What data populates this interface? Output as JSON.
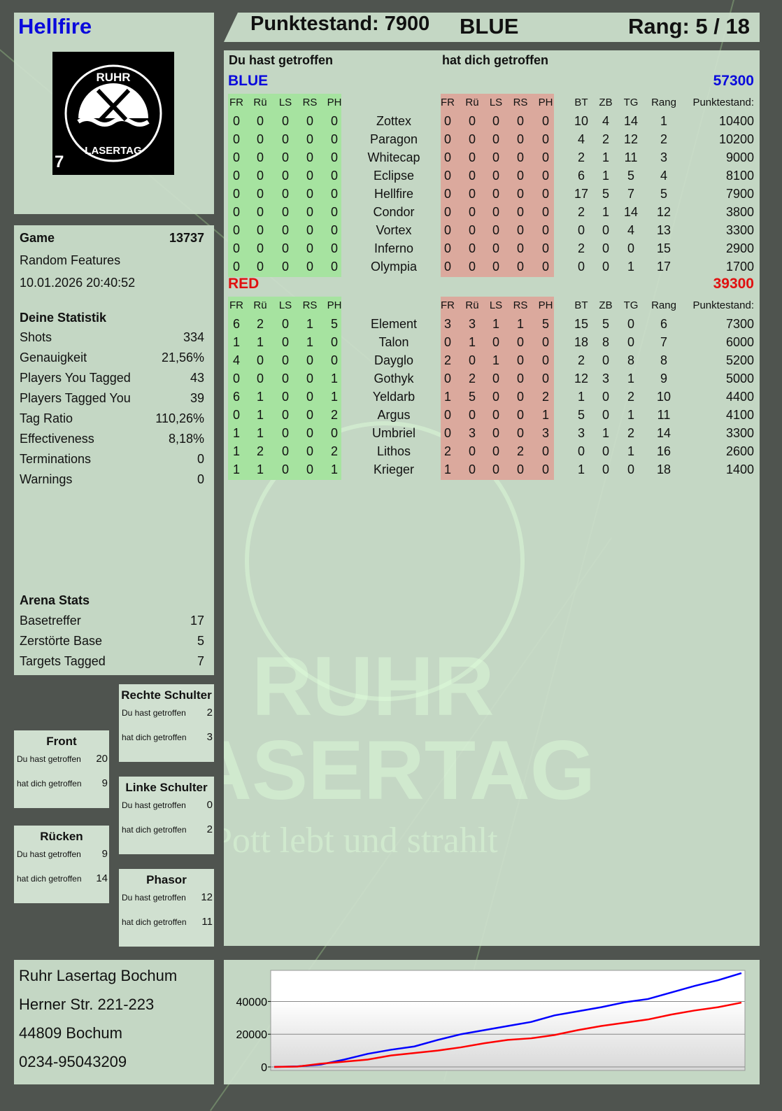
{
  "header": {
    "player": "Hellfire",
    "score_label": "Punktestand: 7900",
    "team": "BLUE",
    "rank_label": "Rang: 5 / 18"
  },
  "logo": {
    "text_top": "RUHR",
    "text_bottom": "LASERTAG",
    "badge": "7"
  },
  "game": {
    "label": "Game",
    "number": "13737",
    "mode": "Random Features",
    "datetime": "10.01.2026 20:40:52"
  },
  "stats": {
    "title": "Deine Statistik",
    "items": [
      {
        "label": "Shots",
        "value": "334"
      },
      {
        "label": "Genauigkeit",
        "value": "21,56%"
      },
      {
        "label": "Players You Tagged",
        "value": "43"
      },
      {
        "label": "Players Tagged You",
        "value": "39"
      },
      {
        "label": "Tag Ratio",
        "value": "110,26%"
      },
      {
        "label": "Effectiveness",
        "value": "8,18%"
      },
      {
        "label": "Terminations",
        "value": "0"
      },
      {
        "label": "Warnings",
        "value": "0"
      }
    ]
  },
  "arena": {
    "title": "Arena Stats",
    "items": [
      {
        "label": "Basetreffer",
        "value": "17"
      },
      {
        "label": "Zerstörte Base",
        "value": "5"
      },
      {
        "label": "Targets Tagged",
        "value": "7"
      }
    ]
  },
  "hits": {
    "you_hit": "Du hast getroffen",
    "hit_you": "hat dich getroffen",
    "zones": [
      {
        "name": "Rechte Schulter",
        "you_hit": "2",
        "hit_you": "3"
      },
      {
        "name": "Front",
        "you_hit": "20",
        "hit_you": "9"
      },
      {
        "name": "Linke Schulter",
        "you_hit": "0",
        "hit_you": "2"
      },
      {
        "name": "Rücken",
        "you_hit": "9",
        "hit_you": "14"
      },
      {
        "name": "Phasor",
        "you_hit": "12",
        "hit_you": "11"
      }
    ]
  },
  "table": {
    "you_hit": "Du hast getroffen",
    "hit_you": "hat dich getroffen",
    "cols": [
      "FR",
      "Rü",
      "LS",
      "RS",
      "PH"
    ],
    "stat_cols": [
      "BT",
      "ZB",
      "TG",
      "Rang"
    ],
    "score_col": "Punktestand:",
    "teams": [
      {
        "name": "BLUE",
        "score": "57300",
        "color": "#0a0adc",
        "players": [
          {
            "name": "Zottex",
            "hit": [
              0,
              0,
              0,
              0,
              0
            ],
            "got": [
              0,
              0,
              0,
              0,
              0
            ],
            "bt": 10,
            "zb": 4,
            "tg": 14,
            "rang": 1,
            "score": 10400
          },
          {
            "name": "Paragon",
            "hit": [
              0,
              0,
              0,
              0,
              0
            ],
            "got": [
              0,
              0,
              0,
              0,
              0
            ],
            "bt": 4,
            "zb": 2,
            "tg": 12,
            "rang": 2,
            "score": 10200
          },
          {
            "name": "Whitecap",
            "hit": [
              0,
              0,
              0,
              0,
              0
            ],
            "got": [
              0,
              0,
              0,
              0,
              0
            ],
            "bt": 2,
            "zb": 1,
            "tg": 11,
            "rang": 3,
            "score": 9000
          },
          {
            "name": "Eclipse",
            "hit": [
              0,
              0,
              0,
              0,
              0
            ],
            "got": [
              0,
              0,
              0,
              0,
              0
            ],
            "bt": 6,
            "zb": 1,
            "tg": 5,
            "rang": 4,
            "score": 8100
          },
          {
            "name": "Hellfire",
            "hit": [
              0,
              0,
              0,
              0,
              0
            ],
            "got": [
              0,
              0,
              0,
              0,
              0
            ],
            "bt": 17,
            "zb": 5,
            "tg": 7,
            "rang": 5,
            "score": 7900
          },
          {
            "name": "Condor",
            "hit": [
              0,
              0,
              0,
              0,
              0
            ],
            "got": [
              0,
              0,
              0,
              0,
              0
            ],
            "bt": 2,
            "zb": 1,
            "tg": 14,
            "rang": 12,
            "score": 3800
          },
          {
            "name": "Vortex",
            "hit": [
              0,
              0,
              0,
              0,
              0
            ],
            "got": [
              0,
              0,
              0,
              0,
              0
            ],
            "bt": 0,
            "zb": 0,
            "tg": 4,
            "rang": 13,
            "score": 3300
          },
          {
            "name": "Inferno",
            "hit": [
              0,
              0,
              0,
              0,
              0
            ],
            "got": [
              0,
              0,
              0,
              0,
              0
            ],
            "bt": 2,
            "zb": 0,
            "tg": 0,
            "rang": 15,
            "score": 2900
          },
          {
            "name": "Olympia",
            "hit": [
              0,
              0,
              0,
              0,
              0
            ],
            "got": [
              0,
              0,
              0,
              0,
              0
            ],
            "bt": 0,
            "zb": 0,
            "tg": 1,
            "rang": 17,
            "score": 1700
          }
        ]
      },
      {
        "name": "RED",
        "score": "39300",
        "color": "#e01010",
        "players": [
          {
            "name": "Element",
            "hit": [
              6,
              2,
              0,
              1,
              5
            ],
            "got": [
              3,
              3,
              1,
              1,
              5
            ],
            "bt": 15,
            "zb": 5,
            "tg": 0,
            "rang": 6,
            "score": 7300
          },
          {
            "name": "Talon",
            "hit": [
              1,
              1,
              0,
              1,
              0
            ],
            "got": [
              0,
              1,
              0,
              0,
              0
            ],
            "bt": 18,
            "zb": 8,
            "tg": 0,
            "rang": 7,
            "score": 6000
          },
          {
            "name": "Dayglo",
            "hit": [
              4,
              0,
              0,
              0,
              0
            ],
            "got": [
              2,
              0,
              1,
              0,
              0
            ],
            "bt": 2,
            "zb": 0,
            "tg": 8,
            "rang": 8,
            "score": 5200
          },
          {
            "name": "Gothyk",
            "hit": [
              0,
              0,
              0,
              0,
              1
            ],
            "got": [
              0,
              2,
              0,
              0,
              0
            ],
            "bt": 12,
            "zb": 3,
            "tg": 1,
            "rang": 9,
            "score": 5000
          },
          {
            "name": "Yeldarb",
            "hit": [
              6,
              1,
              0,
              0,
              1
            ],
            "got": [
              1,
              5,
              0,
              0,
              2
            ],
            "bt": 1,
            "zb": 0,
            "tg": 2,
            "rang": 10,
            "score": 4400
          },
          {
            "name": "Argus",
            "hit": [
              0,
              1,
              0,
              0,
              2
            ],
            "got": [
              0,
              0,
              0,
              0,
              1
            ],
            "bt": 5,
            "zb": 0,
            "tg": 1,
            "rang": 11,
            "score": 4100
          },
          {
            "name": "Umbriel",
            "hit": [
              1,
              1,
              0,
              0,
              0
            ],
            "got": [
              0,
              3,
              0,
              0,
              3
            ],
            "bt": 3,
            "zb": 1,
            "tg": 2,
            "rang": 14,
            "score": 3300
          },
          {
            "name": "Lithos",
            "hit": [
              1,
              2,
              0,
              0,
              2
            ],
            "got": [
              2,
              0,
              0,
              2,
              0
            ],
            "bt": 0,
            "zb": 0,
            "tg": 1,
            "rang": 16,
            "score": 2600
          },
          {
            "name": "Krieger",
            "hit": [
              1,
              1,
              0,
              0,
              1
            ],
            "got": [
              1,
              0,
              0,
              0,
              0
            ],
            "bt": 1,
            "zb": 0,
            "tg": 0,
            "rang": 18,
            "score": 1400
          }
        ]
      }
    ]
  },
  "watermark": {
    "line1": "RUHR",
    "line2": "LASERTAG",
    "slogan": "Der Pott lebt und strahlt"
  },
  "address": {
    "lines": [
      "Ruhr Lasertag Bochum",
      "Herner Str. 221-223",
      "44809 Bochum",
      "0234-95043209"
    ]
  },
  "chart_data": {
    "type": "line",
    "ylim": [
      0,
      59000
    ],
    "yticks": [
      0,
      20000,
      40000
    ],
    "grid": true,
    "series": [
      {
        "color": "#0000ff",
        "values": [
          0,
          300,
          1500,
          4500,
          8000,
          10500,
          12500,
          16500,
          20000,
          22500,
          25000,
          27500,
          31500,
          34000,
          36500,
          39500,
          41500,
          45500,
          49500,
          53000,
          57300
        ]
      },
      {
        "color": "#ff0000",
        "values": [
          0,
          200,
          2000,
          3200,
          4500,
          7000,
          8500,
          10000,
          12000,
          14500,
          16500,
          17500,
          19500,
          22500,
          25000,
          27000,
          29000,
          32000,
          34500,
          36500,
          39300
        ]
      }
    ]
  }
}
